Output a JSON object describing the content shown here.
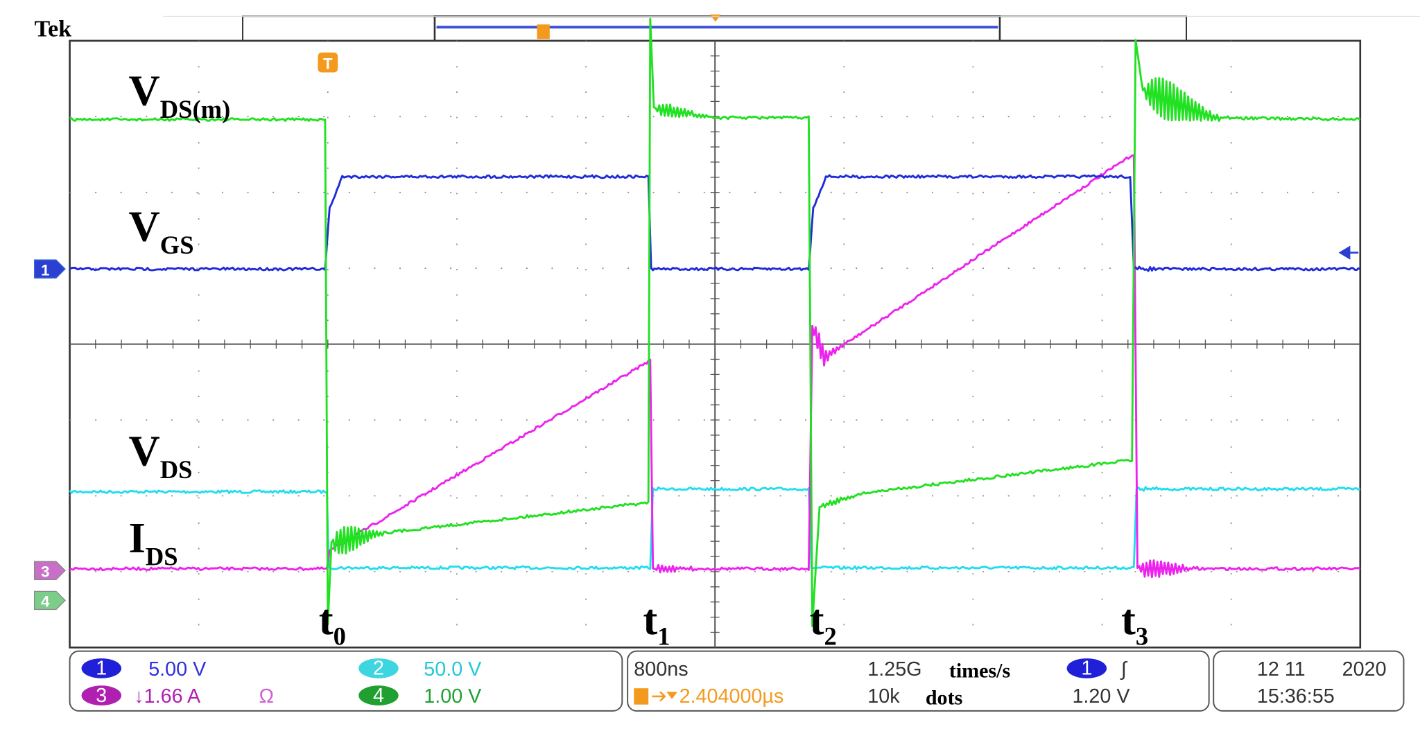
{
  "header": {
    "brand": "Tek",
    "trigger_icon": "T"
  },
  "trace_labels": [
    {
      "main": "V",
      "sub": "DS(m)"
    },
    {
      "main": "V",
      "sub": "GS"
    },
    {
      "main": "V",
      "sub": "DS"
    },
    {
      "main": "I",
      "sub": "DS"
    }
  ],
  "time_markers": [
    {
      "main": "t",
      "sub": "0"
    },
    {
      "main": "t",
      "sub": "1"
    },
    {
      "main": "t",
      "sub": "2"
    },
    {
      "main": "t",
      "sub": "3"
    }
  ],
  "channel_markers": [
    "1",
    "3",
    "4"
  ],
  "status": {
    "channels": [
      {
        "number": "1",
        "scale": "5.00 V"
      },
      {
        "number": "2",
        "scale": "50.0 V"
      },
      {
        "number": "3",
        "scale": "↓1.66 A",
        "unit_icon": "Ω"
      },
      {
        "number": "4",
        "scale": "1.00 V"
      }
    ],
    "timebase": "800ns",
    "trigger_position": "2.404000µs",
    "sample_rate": "1.25G",
    "sample_rate_unit": "times/s",
    "record_length": "10k",
    "record_unit": "dots",
    "trigger_channel": "1",
    "trigger_slope": "∫",
    "trigger_level": "1.20 V",
    "date": "12 11",
    "year": "2020",
    "time": "15:36:55"
  }
}
